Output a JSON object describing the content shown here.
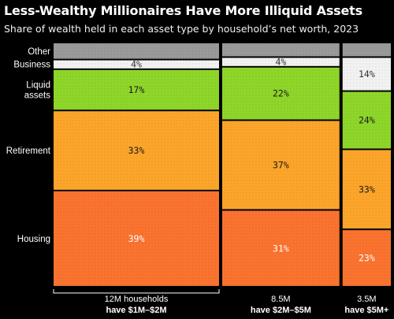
{
  "title": "Less-Wealthy Millionaires Have More Illiquid Assets",
  "subtitle": "Share of wealth held in each asset type by household’s net worth, 2023",
  "colors": {
    "Other": "#9a9a9a",
    "Business": "#f2f2f2",
    "Liquid assets": "#8ed62a",
    "Retirement": "#fca52a",
    "Housing": "#fa732f"
  },
  "chart_data": {
    "type": "mekko",
    "title": "Less-Wealthy Millionaires Have More Illiquid Assets",
    "subtitle": "Share of wealth held in each asset type by household’s net worth, 2023",
    "categories": [
      "Other",
      "Business",
      "Liquid assets",
      "Retirement",
      "Housing"
    ],
    "groups": [
      {
        "count": "12M households",
        "name": "have $1M–$2M",
        "households_millions": 12,
        "values": {
          "Other": 7,
          "Business": 4,
          "Liquid assets": 17,
          "Retirement": 33,
          "Housing": 39
        },
        "labels": {
          "Other": "",
          "Business": "4%",
          "Liquid assets": "17%",
          "Retirement": "33%",
          "Housing": "39%"
        }
      },
      {
        "count": "8.5M",
        "name": "have $2M–$5M",
        "households_millions": 8.5,
        "values": {
          "Other": 6,
          "Business": 4,
          "Liquid assets": 22,
          "Retirement": 37,
          "Housing": 31
        },
        "labels": {
          "Other": "",
          "Business": "4%",
          "Liquid assets": "22%",
          "Retirement": "37%",
          "Housing": "31%"
        }
      },
      {
        "count": "3.5M",
        "name": "have $5M+",
        "households_millions": 3.5,
        "values": {
          "Other": 6,
          "Business": 14,
          "Liquid assets": 24,
          "Retirement": 33,
          "Housing": 23
        },
        "labels": {
          "Other": "",
          "Business": "14%",
          "Liquid assets": "24%",
          "Retirement": "33%",
          "Housing": "23%"
        }
      }
    ]
  }
}
